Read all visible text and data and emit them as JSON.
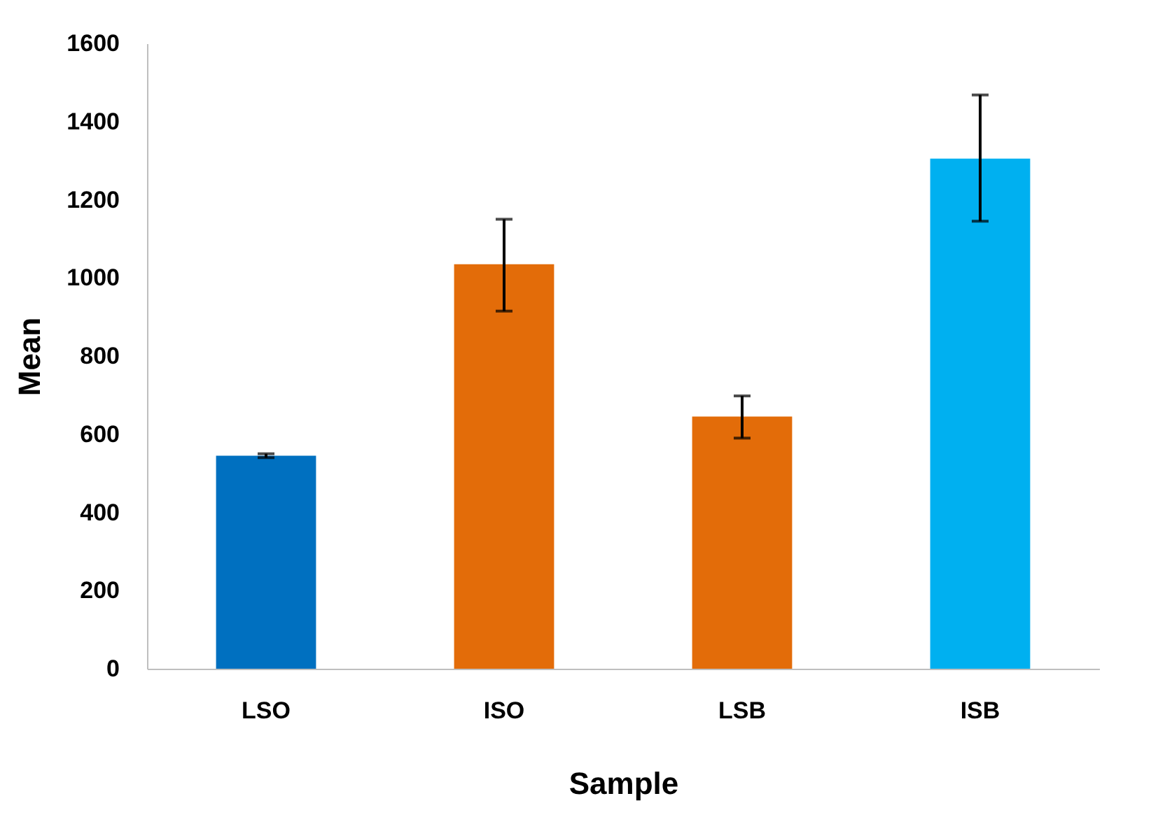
{
  "chart_data": {
    "type": "bar",
    "xlabel": "Sample",
    "ylabel": "Mean",
    "categories": [
      "LSO",
      "ISO",
      "LSB",
      "ISB"
    ],
    "values": [
      545,
      1035,
      645,
      1305
    ],
    "colors": [
      "#0070c0",
      "#e36c09",
      "#e36c09",
      "#00b0f0"
    ],
    "errors": [
      [
        540,
        550
      ],
      [
        915,
        1150
      ],
      [
        590,
        698
      ],
      [
        1145,
        1468
      ]
    ],
    "ylim": [
      0,
      1600
    ],
    "yticks": [
      0,
      200,
      400,
      600,
      800,
      1000,
      1200,
      1400,
      1600
    ],
    "grid": false,
    "legend": false
  }
}
